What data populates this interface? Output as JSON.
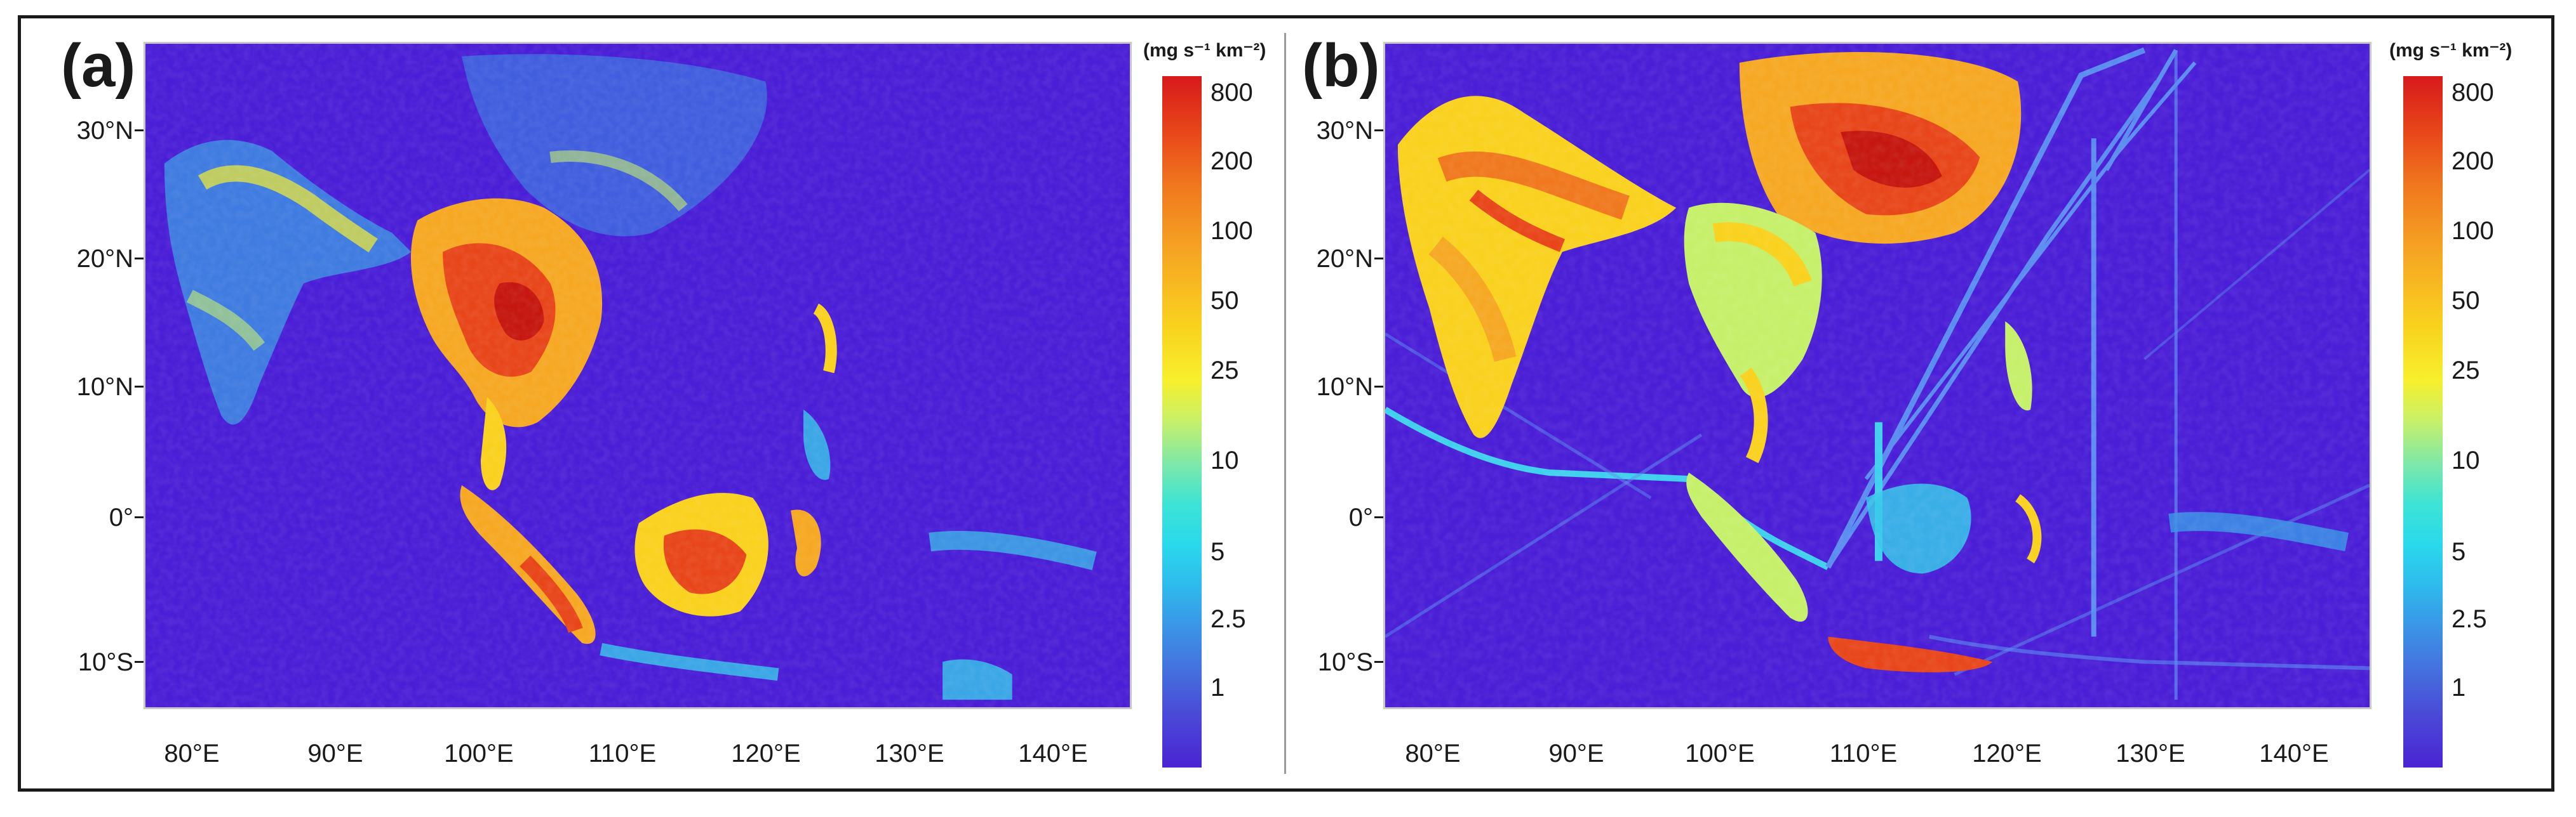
{
  "figure": {
    "panels": [
      {
        "label": "(a)",
        "lat_labels": [
          "30°N",
          "20°N",
          "10°N",
          "0°",
          "10°S"
        ],
        "lon_labels": [
          "80°E",
          "90°E",
          "100°E",
          "110°E",
          "120°E",
          "130°E",
          "140°E"
        ],
        "colorbar": {
          "unit": "(mg s⁻¹ km⁻²)",
          "ticks": [
            "800",
            "200",
            "100",
            "50",
            "25",
            "10",
            "5",
            "2.5",
            "1"
          ]
        }
      },
      {
        "label": "(b)",
        "lat_labels": [
          "30°N",
          "20°N",
          "10°N",
          "0°",
          "10°S"
        ],
        "lon_labels": [
          "80°E",
          "90°E",
          "100°E",
          "110°E",
          "120°E",
          "130°E",
          "140°E"
        ],
        "colorbar": {
          "unit": "(mg s⁻¹ km⁻²)",
          "ticks": [
            "800",
            "200",
            "100",
            "50",
            "25",
            "10",
            "5",
            "2.5",
            "1"
          ]
        }
      }
    ]
  },
  "colors": {
    "ocean_background": "#4a1ed6",
    "high": "#d7191c",
    "mid": "#f9d11e",
    "low": "#29d8ec",
    "ship_tracks": "#5a8cf0"
  }
}
